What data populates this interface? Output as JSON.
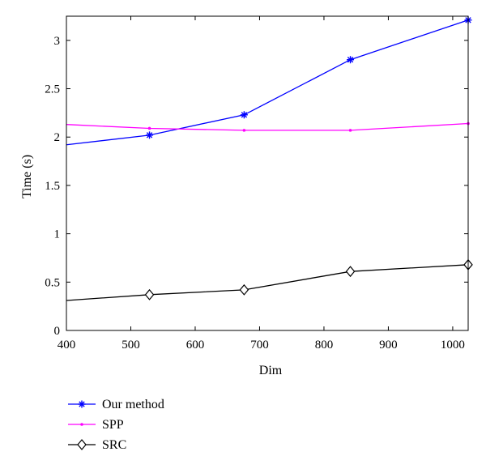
{
  "chart_data": {
    "type": "line",
    "xlabel": "Dim",
    "ylabel": "Time (s)",
    "xlim": [
      400,
      1024
    ],
    "ylim": [
      0,
      3.25
    ],
    "xticks": [
      400,
      500,
      600,
      700,
      800,
      900,
      1000
    ],
    "yticks": [
      0,
      0.5,
      1,
      1.5,
      2,
      2.5,
      3
    ],
    "grid": false,
    "legend_position": "below",
    "series": [
      {
        "name": "Our method",
        "color": "#0000ff",
        "marker": "asterisk",
        "x": [
          400,
          529,
          676,
          841,
          1024
        ],
        "y": [
          1.92,
          2.02,
          2.23,
          2.8,
          3.21
        ]
      },
      {
        "name": "SPP",
        "color": "#ff00ff",
        "marker": "point",
        "x": [
          400,
          529,
          676,
          841,
          1024
        ],
        "y": [
          2.13,
          2.09,
          2.07,
          2.07,
          2.14
        ]
      },
      {
        "name": "SRC",
        "color": "#000000",
        "marker": "diamond",
        "x": [
          400,
          529,
          676,
          841,
          1024
        ],
        "y": [
          0.31,
          0.37,
          0.42,
          0.61,
          0.68
        ]
      }
    ]
  }
}
